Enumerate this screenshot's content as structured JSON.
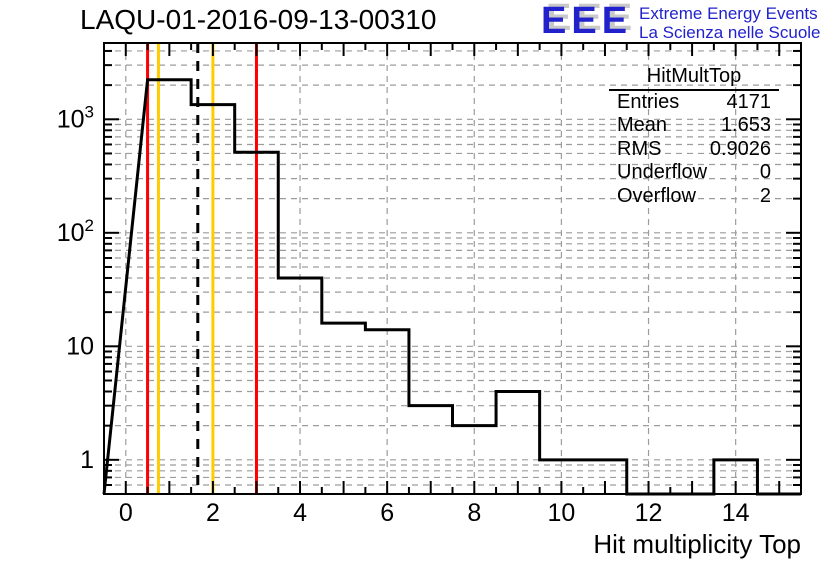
{
  "page": {
    "background": "#ffffff"
  },
  "header": {
    "title": "LAQU-01-2016-09-13-00310",
    "logo": {
      "acronym": "EEE",
      "line1": "Extreme Energy Events",
      "line2": "La Scienza nelle Scuole",
      "color": "#2222cc",
      "shadow_color": "#c8c8c8"
    }
  },
  "stats_box": {
    "title": "HitMultTop",
    "rows": [
      {
        "label": "Entries",
        "value": "4171"
      },
      {
        "label": "Mean",
        "value": "1.653"
      },
      {
        "label": "RMS",
        "value": "0.9026"
      },
      {
        "label": "Underflow",
        "value": "0"
      },
      {
        "label": "Overflow",
        "value": "2"
      }
    ]
  },
  "chart_data": {
    "type": "bar",
    "subtype": "step-histogram-log-y",
    "title": "LAQU-01-2016-09-13-00310",
    "xlabel": "Hit multiplicity Top",
    "ylabel": "",
    "x_range": [
      -0.5,
      15.5
    ],
    "y_range": [
      0.5,
      4700
    ],
    "y_scale": "log",
    "grid": true,
    "grid_color": "#9c9c9c",
    "bin_centers": [
      1,
      2,
      3,
      4,
      5,
      6,
      7,
      8,
      9,
      10,
      11,
      12,
      13,
      14,
      15
    ],
    "values": [
      2230,
      1345,
      512,
      40,
      16,
      14,
      3,
      2,
      4,
      1,
      1,
      0,
      0,
      1,
      0
    ],
    "x_major_ticks": [
      0,
      2,
      4,
      6,
      8,
      10,
      12,
      14
    ],
    "x_tick_labels": [
      "0",
      "2",
      "4",
      "6",
      "8",
      "10",
      "12",
      "14"
    ],
    "y_ticks": [
      1,
      10,
      100,
      1000
    ],
    "y_tick_labels": [
      "1",
      "10",
      "10^2",
      "10^3"
    ],
    "line_color": "#000000",
    "marker_lines": [
      {
        "x": 0.5,
        "color": "#ff0000",
        "style": "solid",
        "name": "red-line-low"
      },
      {
        "x": 0.75,
        "color": "#ffcc00",
        "style": "solid",
        "name": "yellow-line-low"
      },
      {
        "x": 1.653,
        "color": "#000000",
        "style": "dashed",
        "name": "mean-line"
      },
      {
        "x": 2.0,
        "color": "#ffcc00",
        "style": "solid",
        "name": "yellow-line-high"
      },
      {
        "x": 3.0,
        "color": "#ff0000",
        "style": "solid",
        "name": "red-line-high"
      }
    ]
  },
  "axis": {
    "x_title": "Hit multiplicity Top"
  }
}
